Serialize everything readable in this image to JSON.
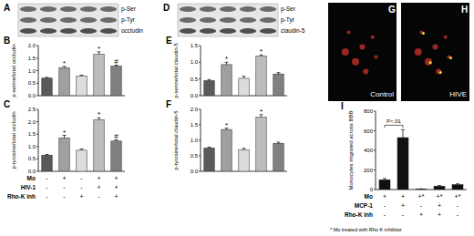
{
  "blots": [
    {
      "panel": "A",
      "labels": [
        "p-Ser",
        "p-Tyr",
        "occludin"
      ]
    },
    {
      "panel": "D",
      "labels": [
        "p-Ser",
        "p-Tyr",
        "claudin-5"
      ]
    }
  ],
  "images": [
    {
      "panel": "G",
      "label": "Control"
    },
    {
      "panel": "H",
      "label": "HIVE"
    }
  ],
  "chart_data": [
    {
      "panel": "B",
      "type": "bar",
      "y_label": "p-serine/total occludin",
      "categories": [
        null,
        null,
        null,
        null,
        null
      ],
      "values": [
        0.7,
        1.12,
        0.78,
        1.65,
        1.18
      ],
      "errors": [
        0.03,
        0.05,
        0.04,
        0.1,
        0.04
      ],
      "annotations": [
        null,
        "*",
        null,
        "*",
        "#"
      ],
      "colors": [
        "#5a5a5a",
        "#a0a0a0",
        "#dcdcdc",
        "#bdbdbd",
        "#808080"
      ],
      "ylim": [
        0,
        2
      ],
      "yticks": [
        {
          "value": 0,
          "label": "0.0"
        },
        {
          "value": 0.5,
          "label": "0.5"
        },
        {
          "value": 1,
          "label": "1.0"
        },
        {
          "value": 1.5,
          "label": "1.5"
        },
        {
          "value": 2,
          "label": "2.0"
        }
      ]
    },
    {
      "panel": "C",
      "type": "bar",
      "y_label": "p-tyrosine/total occludin",
      "categories": [
        null,
        null,
        null,
        null,
        null
      ],
      "values": [
        0.65,
        1.35,
        0.85,
        2.08,
        1.22
      ],
      "errors": [
        0.03,
        0.1,
        0.05,
        0.08,
        0.05
      ],
      "annotations": [
        null,
        "*",
        null,
        "*",
        "#"
      ],
      "colors": [
        "#5a5a5a",
        "#a0a0a0",
        "#dcdcdc",
        "#bdbdbd",
        "#808080"
      ],
      "ylim": [
        0,
        2.5
      ],
      "yticks": [
        {
          "value": 0,
          "label": "0.0"
        },
        {
          "value": 0.5,
          "label": "0.5"
        },
        {
          "value": 1,
          "label": "1.0"
        },
        {
          "value": 1.5,
          "label": "1.5"
        },
        {
          "value": 2,
          "label": "2.0"
        },
        {
          "value": 2.5,
          "label": "2.5"
        }
      ],
      "conditions": [
        {
          "label": "Mo",
          "signs": [
            "-",
            "+",
            "-",
            "+",
            "+"
          ]
        },
        {
          "label": "HIV-1",
          "signs": [
            "-",
            "-",
            "-",
            "+",
            "+"
          ]
        },
        {
          "label": "Rho-K inh",
          "signs": [
            "-",
            "-",
            "+",
            "-",
            "+"
          ]
        }
      ]
    },
    {
      "panel": "E",
      "type": "bar",
      "y_label": "p-serine/total claudin-5",
      "categories": [
        null,
        null,
        null,
        null,
        null
      ],
      "values": [
        0.45,
        0.93,
        0.52,
        1.18,
        0.65
      ],
      "errors": [
        0.03,
        0.07,
        0.06,
        0.04,
        0.04
      ],
      "annotations": [
        null,
        "*",
        null,
        "*",
        null
      ],
      "colors": [
        "#5a5a5a",
        "#a0a0a0",
        "#dcdcdc",
        "#bdbdbd",
        "#808080"
      ],
      "ylim": [
        0,
        1.5
      ],
      "yticks": [
        {
          "value": 0,
          "label": "0.0"
        },
        {
          "value": 0.5,
          "label": "0.5"
        },
        {
          "value": 1,
          "label": "1.0"
        },
        {
          "value": 1.5,
          "label": "1.5"
        }
      ]
    },
    {
      "panel": "F",
      "type": "bar",
      "y_label": "p-tyrosine/total claudin-5",
      "categories": [
        null,
        null,
        null,
        null,
        null
      ],
      "values": [
        0.75,
        1.35,
        0.7,
        1.75,
        0.9
      ],
      "errors": [
        0.03,
        0.04,
        0.04,
        0.08,
        0.04
      ],
      "annotations": [
        null,
        "*",
        null,
        "*",
        null
      ],
      "colors": [
        "#5a5a5a",
        "#a0a0a0",
        "#dcdcdc",
        "#bdbdbd",
        "#808080"
      ],
      "ylim": [
        0,
        2
      ],
      "yticks": [
        {
          "value": 0,
          "label": "0.0"
        },
        {
          "value": 0.5,
          "label": "0.5"
        },
        {
          "value": 1,
          "label": "1.0"
        },
        {
          "value": 1.5,
          "label": "1.5"
        },
        {
          "value": 2,
          "label": "2.0"
        }
      ]
    },
    {
      "panel": "I",
      "type": "bar",
      "y_label": "Monocytes migrated across BBB",
      "categories": [
        null,
        null,
        null,
        null,
        null
      ],
      "values": [
        100,
        530,
        5,
        35,
        50
      ],
      "errors": [
        12,
        80,
        2,
        6,
        8
      ],
      "colors": [
        "#111111",
        "#111111",
        "#111111",
        "#111111",
        "#111111"
      ],
      "ylim": [
        0,
        800
      ],
      "yticks": [
        0,
        200,
        400,
        600,
        800
      ],
      "bracket_text": "P<.01",
      "conditions": [
        {
          "label": "Mo",
          "signs": [
            "+",
            "+",
            "+*",
            "+*",
            "+*"
          ]
        },
        {
          "label": "MCP-1",
          "signs": [
            "-",
            "+",
            "-",
            "+",
            "-"
          ]
        },
        {
          "label": "Rho-K inh",
          "signs": [
            "-",
            "-",
            "+",
            "+",
            "-"
          ]
        }
      ],
      "footnote": "* Mo treated with Rho K inhibitor"
    }
  ]
}
